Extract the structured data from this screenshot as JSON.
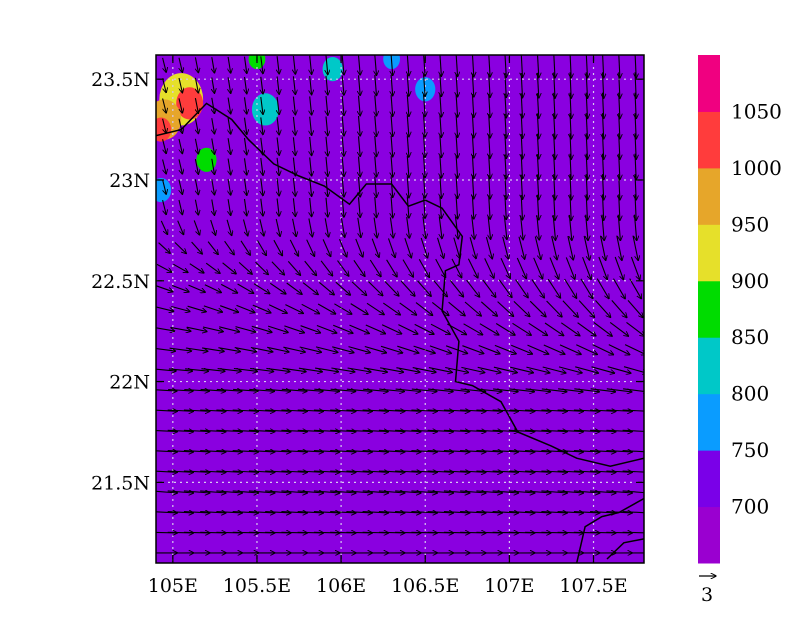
{
  "map": {
    "projection": "lat-lon",
    "lon_range": [
      104.9,
      107.8
    ],
    "lat_range": [
      21.1,
      23.62
    ],
    "lon_ticks": [
      {
        "value": 105.0,
        "label": "105E"
      },
      {
        "value": 105.5,
        "label": "105.5E"
      },
      {
        "value": 106.0,
        "label": "106E"
      },
      {
        "value": 106.5,
        "label": "106.5E"
      },
      {
        "value": 107.0,
        "label": "107E"
      },
      {
        "value": 107.5,
        "label": "107.5E"
      }
    ],
    "lat_ticks": [
      {
        "value": 23.5,
        "label": "23.5N"
      },
      {
        "value": 23.0,
        "label": "23N"
      },
      {
        "value": 22.5,
        "label": "22.5N"
      },
      {
        "value": 22.0,
        "label": "22N"
      },
      {
        "value": 21.5,
        "label": "21.5N"
      }
    ],
    "grid": "dotted",
    "border_line": [
      [
        104.9,
        23.22
      ],
      [
        105.05,
        23.25
      ],
      [
        105.2,
        23.38
      ],
      [
        105.35,
        23.3
      ],
      [
        105.45,
        23.2
      ],
      [
        105.6,
        23.08
      ],
      [
        105.75,
        23.02
      ],
      [
        105.9,
        22.97
      ],
      [
        106.05,
        22.88
      ],
      [
        106.15,
        22.98
      ],
      [
        106.3,
        22.98
      ],
      [
        106.4,
        22.87
      ],
      [
        106.5,
        22.9
      ],
      [
        106.6,
        22.86
      ],
      [
        106.72,
        22.72
      ],
      [
        106.7,
        22.58
      ],
      [
        106.62,
        22.55
      ],
      [
        106.6,
        22.35
      ],
      [
        106.7,
        22.2
      ],
      [
        106.68,
        22.0
      ],
      [
        106.78,
        21.98
      ],
      [
        106.95,
        21.9
      ],
      [
        107.05,
        21.75
      ],
      [
        107.25,
        21.68
      ],
      [
        107.4,
        21.62
      ],
      [
        107.6,
        21.58
      ],
      [
        107.8,
        21.62
      ]
    ],
    "coast_line": [
      [
        107.8,
        21.42
      ],
      [
        107.65,
        21.35
      ],
      [
        107.55,
        21.33
      ],
      [
        107.45,
        21.28
      ],
      [
        107.4,
        21.1
      ]
    ],
    "coast_line_2": [
      [
        107.8,
        21.22
      ],
      [
        107.68,
        21.2
      ],
      [
        107.58,
        21.12
      ]
    ],
    "colors": {
      "background_field": "#8a00e0",
      "frame": "#000000",
      "grid": "#d8c8f0",
      "vectors": "#000000"
    },
    "blobs": [
      {
        "lon": 105.05,
        "lat": 23.4,
        "r": 0.13,
        "level": 900
      },
      {
        "lon": 105.1,
        "lat": 23.38,
        "r": 0.08,
        "level": 1000
      },
      {
        "lon": 104.95,
        "lat": 23.3,
        "r": 0.1,
        "level": 950
      },
      {
        "lon": 104.93,
        "lat": 23.25,
        "r": 0.06,
        "level": 1000
      },
      {
        "lon": 105.2,
        "lat": 23.1,
        "r": 0.06,
        "level": 850
      },
      {
        "lon": 105.55,
        "lat": 23.35,
        "r": 0.08,
        "level": 800
      },
      {
        "lon": 105.95,
        "lat": 23.55,
        "r": 0.06,
        "level": 800
      },
      {
        "lon": 105.5,
        "lat": 23.6,
        "r": 0.05,
        "level": 850
      },
      {
        "lon": 106.5,
        "lat": 23.45,
        "r": 0.06,
        "level": 750
      },
      {
        "lon": 106.3,
        "lat": 23.6,
        "r": 0.05,
        "level": 750
      },
      {
        "lon": 104.93,
        "lat": 22.95,
        "r": 0.06,
        "level": 750
      }
    ]
  },
  "colorbar": {
    "levels": [
      650,
      700,
      750,
      800,
      850,
      900,
      950,
      1000,
      1050,
      1100
    ],
    "colors": [
      "#9a00d0",
      "#7a00e8",
      "#0a9cff",
      "#00c8c8",
      "#00dc00",
      "#e6e02a",
      "#e6a62a",
      "#ff3c3c",
      "#f00080"
    ],
    "labels": [
      "700",
      "750",
      "800",
      "850",
      "900",
      "950",
      "1000",
      "1050"
    ]
  },
  "vector_key": {
    "label": "3"
  }
}
